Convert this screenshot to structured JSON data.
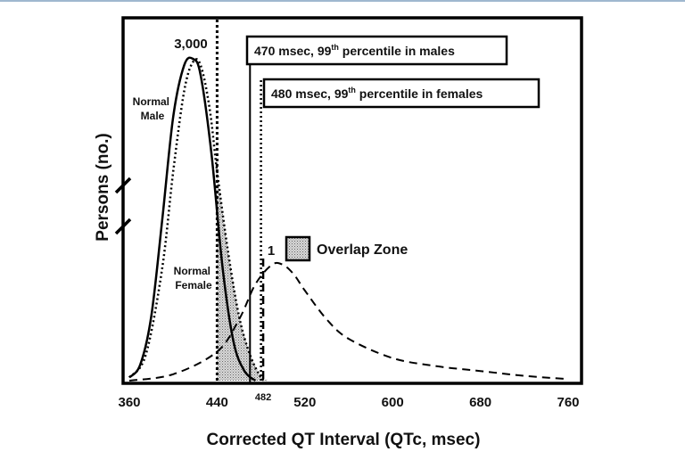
{
  "chart_data": {
    "type": "line",
    "xlabel": "Corrected QT Interval (QTc, msec)",
    "ylabel": "Persons (no.)",
    "xlim": [
      360,
      760
    ],
    "x_ticks": [
      360,
      440,
      482,
      520,
      600,
      680,
      760
    ],
    "peak_label": "3,000",
    "low_peak_label": "1",
    "legend": {
      "label": "Overlap Zone",
      "position": "center-right"
    },
    "annotations": [
      {
        "lead": "470 msec, 99",
        "sup": "th",
        "tail": " percentile in males",
        "x": 470
      },
      {
        "lead": "480 msec, 99",
        "sup": "th",
        "tail": " percentile in females",
        "x": 480
      }
    ],
    "vertical_lines": [
      {
        "x": 440,
        "style": "dotted-bold"
      },
      {
        "x": 470,
        "style": "solid"
      },
      {
        "x": 480,
        "style": "dotted"
      },
      {
        "x": 482,
        "style": "dashed"
      }
    ],
    "series": [
      {
        "label_lines": [
          "Normal",
          "Male"
        ],
        "style": "solid",
        "x": [
          360,
          370,
          380,
          390,
          400,
          410,
          418,
          425,
          435,
          445,
          455,
          465,
          475
        ],
        "values": [
          0.01,
          0.05,
          0.2,
          0.5,
          0.82,
          0.98,
          1.0,
          0.95,
          0.7,
          0.35,
          0.12,
          0.03,
          0.0
        ]
      },
      {
        "label_lines": [
          "Normal",
          "Female"
        ],
        "style": "dotted",
        "x": [
          360,
          375,
          390,
          400,
          410,
          418,
          425,
          433,
          440,
          450,
          460,
          470,
          480,
          485
        ],
        "values": [
          0.01,
          0.08,
          0.35,
          0.65,
          0.9,
          0.99,
          0.98,
          0.85,
          0.65,
          0.4,
          0.2,
          0.08,
          0.01,
          0.0
        ]
      },
      {
        "label_lines": [],
        "style": "dashed",
        "x": [
          360,
          400,
          440,
          460,
          475,
          490,
          500,
          510,
          520,
          540,
          560,
          600,
          640,
          680,
          720,
          760
        ],
        "values": [
          0.0,
          0.02,
          0.09,
          0.19,
          0.3,
          0.36,
          0.36,
          0.33,
          0.28,
          0.19,
          0.13,
          0.07,
          0.045,
          0.03,
          0.015,
          0.005
        ]
      }
    ]
  }
}
